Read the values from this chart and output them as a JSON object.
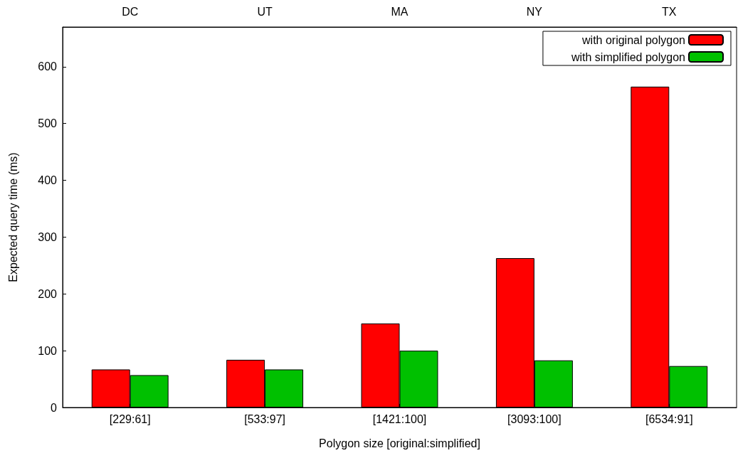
{
  "chart_data": {
    "type": "bar",
    "xlabel": "Polygon size [original:simplified]",
    "ylabel": "Expected query time (ms)",
    "categories": [
      "[229:61]",
      "[533:97]",
      "[1421:100]",
      "[3093:100]",
      "[6534:91]"
    ],
    "annotations": [
      "DC",
      "UT",
      "MA",
      "NY",
      "TX"
    ],
    "series": [
      {
        "name": "with original polygon",
        "color": "#ff0000",
        "values": [
          67,
          84,
          148,
          263,
          565
        ]
      },
      {
        "name": "with simplified polygon",
        "color": "#00c000",
        "values": [
          57,
          67,
          100,
          83,
          73
        ]
      }
    ],
    "ylim": [
      0,
      670
    ],
    "yticks": [
      0,
      100,
      200,
      300,
      400,
      500,
      600
    ],
    "grid": false,
    "legend": "top right"
  }
}
